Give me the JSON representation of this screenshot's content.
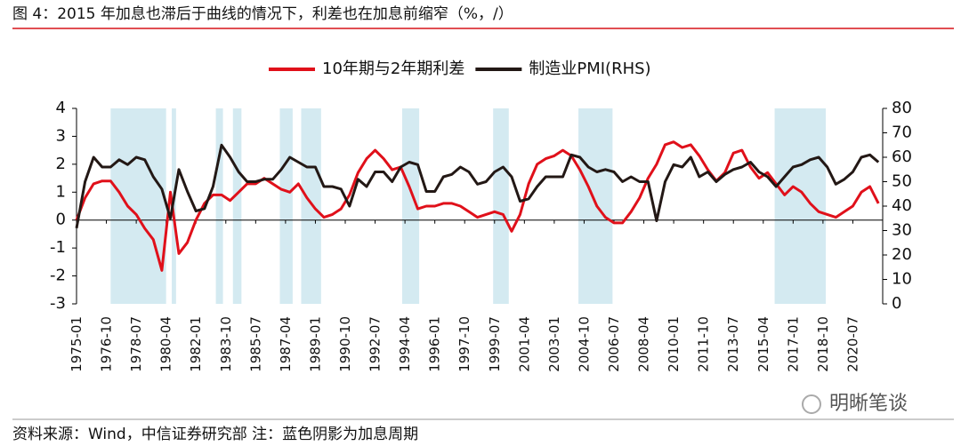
{
  "header": {
    "title": "图 4：2015 年加息也滞后于曲线的情况下，利差也在加息前缩窄（%，/）"
  },
  "chart_data": {
    "type": "line",
    "x": [
      "1975-01",
      "1975-07",
      "1976-01",
      "1976-07",
      "1977-01",
      "1977-07",
      "1978-01",
      "1978-07",
      "1979-01",
      "1979-07",
      "1980-01",
      "1980-07",
      "1981-01",
      "1981-07",
      "1982-01",
      "1982-07",
      "1983-01",
      "1983-07",
      "1984-01",
      "1984-07",
      "1985-01",
      "1985-07",
      "1986-01",
      "1986-07",
      "1987-01",
      "1987-07",
      "1988-01",
      "1988-07",
      "1989-01",
      "1989-07",
      "1990-01",
      "1990-07",
      "1991-01",
      "1991-07",
      "1992-01",
      "1992-07",
      "1993-01",
      "1993-07",
      "1994-01",
      "1994-07",
      "1995-01",
      "1995-07",
      "1996-01",
      "1996-07",
      "1997-01",
      "1997-07",
      "1998-01",
      "1998-07",
      "1999-01",
      "1999-07",
      "2000-01",
      "2000-07",
      "2001-01",
      "2001-07",
      "2002-01",
      "2002-07",
      "2003-01",
      "2003-07",
      "2004-01",
      "2004-07",
      "2005-01",
      "2005-07",
      "2006-01",
      "2006-07",
      "2007-01",
      "2007-07",
      "2008-01",
      "2008-07",
      "2009-01",
      "2009-07",
      "2010-01",
      "2010-07",
      "2011-01",
      "2011-07",
      "2012-01",
      "2012-07",
      "2013-01",
      "2013-07",
      "2014-01",
      "2014-07",
      "2015-01",
      "2015-07",
      "2016-01",
      "2016-07",
      "2017-01",
      "2017-07",
      "2018-01",
      "2018-07",
      "2019-01",
      "2019-07",
      "2020-01",
      "2020-07",
      "2021-01",
      "2021-07",
      "2022-01"
    ],
    "series": [
      {
        "name": "10年期与2年期利差",
        "color": "#e0101a",
        "values": [
          0,
          0.8,
          1.3,
          1.4,
          1.4,
          1.0,
          0.5,
          0.2,
          -0.3,
          -0.7,
          -1.8,
          1.0,
          -1.2,
          -0.8,
          0.0,
          0.6,
          0.9,
          0.9,
          0.7,
          1.0,
          1.3,
          1.3,
          1.5,
          1.3,
          1.1,
          1.0,
          1.3,
          0.8,
          0.4,
          0.1,
          0.2,
          0.4,
          0.9,
          1.7,
          2.2,
          2.5,
          2.2,
          1.8,
          1.9,
          1.2,
          0.4,
          0.5,
          0.5,
          0.6,
          0.6,
          0.5,
          0.3,
          0.1,
          0.2,
          0.3,
          0.2,
          -0.4,
          0.2,
          1.3,
          2.0,
          2.2,
          2.3,
          2.5,
          2.3,
          1.8,
          1.2,
          0.5,
          0.1,
          -0.1,
          -0.1,
          0.3,
          0.8,
          1.5,
          2.0,
          2.7,
          2.8,
          2.6,
          2.7,
          2.3,
          1.8,
          1.4,
          1.7,
          2.4,
          2.5,
          1.9,
          1.5,
          1.7,
          1.3,
          0.9,
          1.2,
          1.0,
          0.6,
          0.3,
          0.2,
          0.1,
          0.3,
          0.5,
          1.0,
          1.2,
          0.6
        ]
      },
      {
        "name": "制造业PMI(RHS)",
        "color": "#231815",
        "axis": "y2",
        "values": [
          31,
          50,
          60,
          56,
          56,
          59,
          57,
          60,
          59,
          52,
          47,
          35,
          55,
          46,
          38,
          39,
          48,
          65,
          60,
          54,
          50,
          50,
          51,
          51,
          55,
          60,
          58,
          56,
          56,
          48,
          48,
          47,
          40,
          51,
          48,
          54,
          54,
          50,
          56,
          58,
          57,
          46,
          46,
          52,
          53,
          56,
          54,
          49,
          50,
          54,
          56,
          52,
          42,
          43,
          48,
          52,
          52,
          52,
          61,
          60,
          56,
          54,
          55,
          54,
          50,
          52,
          50,
          50,
          34,
          50,
          57,
          56,
          60,
          52,
          54,
          50,
          53,
          55,
          56,
          58,
          54,
          52,
          48,
          52,
          56,
          57,
          59,
          60,
          56,
          49,
          51,
          54,
          60,
          61,
          58
        ]
      }
    ],
    "xlim": [
      "1975-01",
      "2022-04"
    ],
    "xticks": [
      "1975-01",
      "1976-10",
      "1978-07",
      "1980-04",
      "1982-01",
      "1983-10",
      "1985-07",
      "1987-04",
      "1989-01",
      "1990-10",
      "1992-07",
      "1994-04",
      "1996-01",
      "1997-10",
      "1999-07",
      "2001-04",
      "2003-01",
      "2004-10",
      "2006-07",
      "2008-04",
      "2010-01",
      "2011-10",
      "2013-07",
      "2015-04",
      "2017-01",
      "2018-10",
      "2020-07"
    ],
    "ylim": [
      -3,
      4
    ],
    "yticks": [
      -3,
      -2,
      -1,
      0,
      1,
      2,
      3,
      4
    ],
    "y2lim": [
      0,
      80
    ],
    "y2ticks": [
      0,
      10,
      20,
      30,
      40,
      50,
      60,
      70,
      80
    ],
    "shaded": [
      [
        "1977-01",
        "1980-04"
      ],
      [
        "1980-08",
        "1980-11"
      ],
      [
        "1983-03",
        "1983-08"
      ],
      [
        "1984-03",
        "1984-09"
      ],
      [
        "1986-12",
        "1987-09"
      ],
      [
        "1988-03",
        "1989-05"
      ],
      [
        "1994-02",
        "1995-02"
      ],
      [
        "1999-06",
        "2000-05"
      ],
      [
        "2004-06",
        "2006-06"
      ],
      [
        "2015-12",
        "2018-12"
      ]
    ],
    "shade_color": "#d4eaf1"
  },
  "footer": {
    "source": "资料来源：Wind，中信证券研究部   注：蓝色阴影为加息周期",
    "watermark": "明晰笔谈"
  }
}
